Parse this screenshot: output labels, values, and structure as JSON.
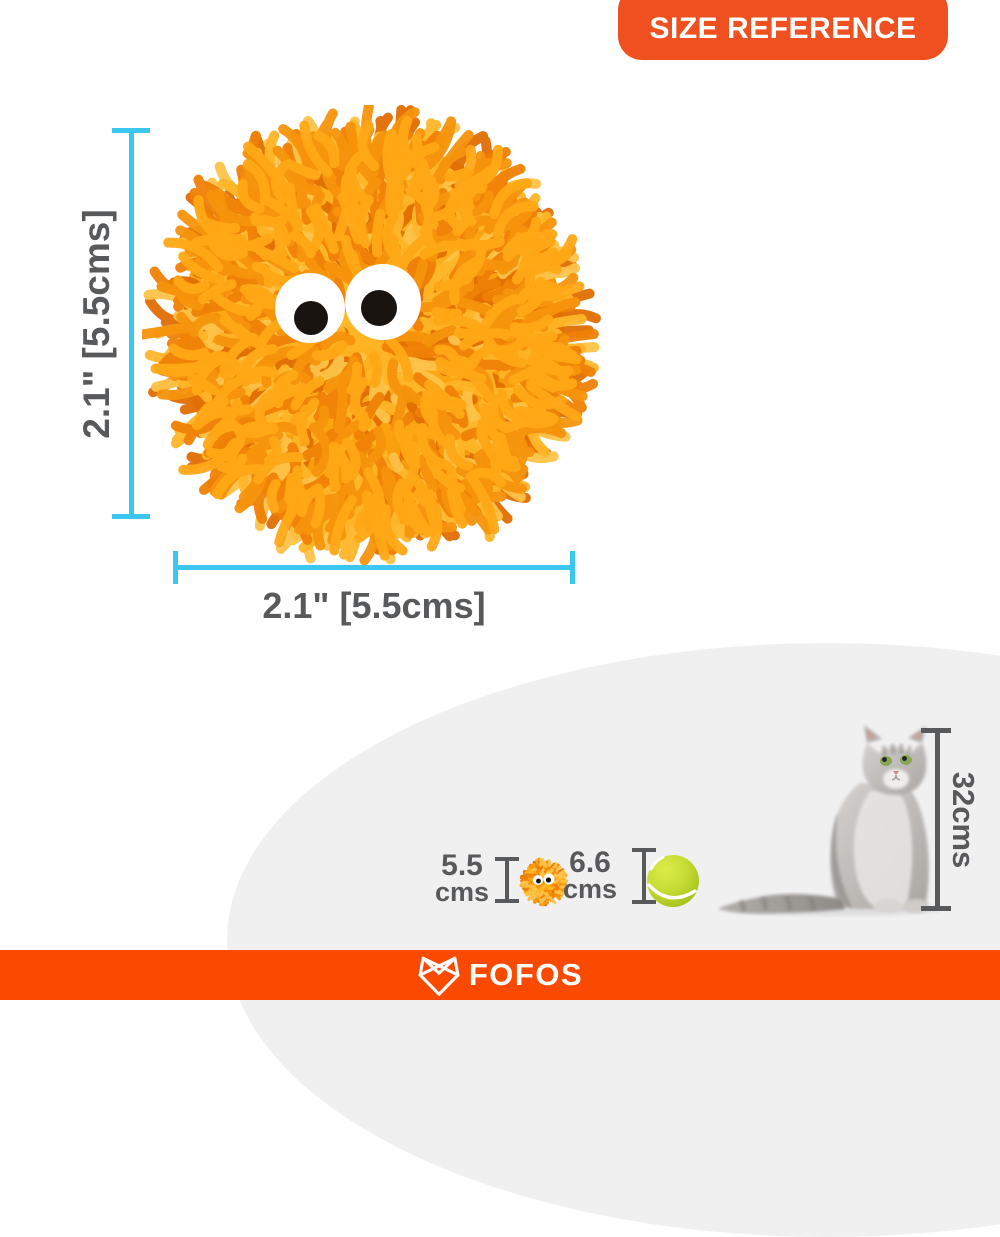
{
  "badge": {
    "label": "SIZE REFERENCE"
  },
  "product_dimensions": {
    "height_label": "2.1\" [5.5cms]",
    "width_label": "2.1\" [5.5cms]"
  },
  "size_comparison": {
    "toy_ball": {
      "value": "5.5",
      "unit": "cms"
    },
    "tennis_ball": {
      "value": "6.6",
      "unit": "cms"
    },
    "cat": {
      "height_label": "32cms"
    }
  },
  "footer": {
    "brand": "FOFOS"
  },
  "icons": {
    "badge": "size-reference-badge",
    "footer_logo": "fofos-fox-icon",
    "toy": "fuzzy-ball-icon",
    "tennis": "tennis-ball-icon"
  },
  "colors": {
    "accent_orange": "#F0501F",
    "footer_orange": "#FA4A02",
    "dimension_cyan": "#3CC7F0",
    "text_gray": "#58595B",
    "blob_gray": "#F0F0F1",
    "ball_palette": [
      "#F6930C",
      "#FFA816",
      "#FFB527",
      "#FDC34A",
      "#EF8106",
      "#E06E02"
    ],
    "tennis_greens": [
      "#DCEC4A",
      "#C6DC33",
      "#A7C31F"
    ]
  }
}
